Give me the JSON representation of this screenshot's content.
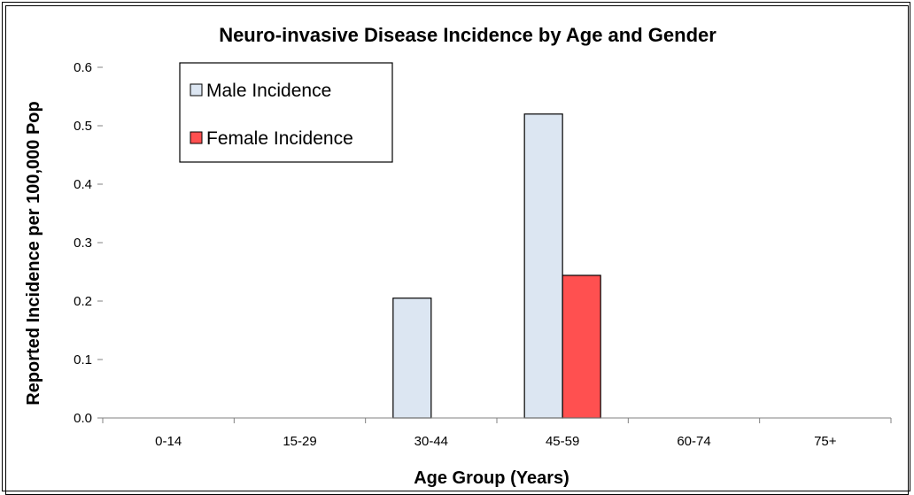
{
  "chart_data": {
    "type": "bar",
    "title": "Neuro-invasive Disease Incidence by Age and Gender",
    "xlabel": "Age Group (Years)",
    "ylabel": "Reported Incidence per 100,000 Pop",
    "categories": [
      "0-14",
      "15-29",
      "30-44",
      "45-59",
      "60-74",
      "75+"
    ],
    "series": [
      {
        "name": "Male Incidence",
        "color": "#dce6f2",
        "values": [
          0,
          0,
          0.205,
          0.52,
          0,
          0
        ]
      },
      {
        "name": "Female Incidence",
        "color": "#ff5050",
        "values": [
          0,
          0,
          0,
          0.244,
          0,
          0
        ]
      }
    ],
    "ylim": [
      0,
      0.6
    ],
    "yticks": [
      "0.0",
      "0.1",
      "0.2",
      "0.3",
      "0.4",
      "0.5",
      "0.6"
    ],
    "grid": false,
    "legend_position": "top-left"
  }
}
